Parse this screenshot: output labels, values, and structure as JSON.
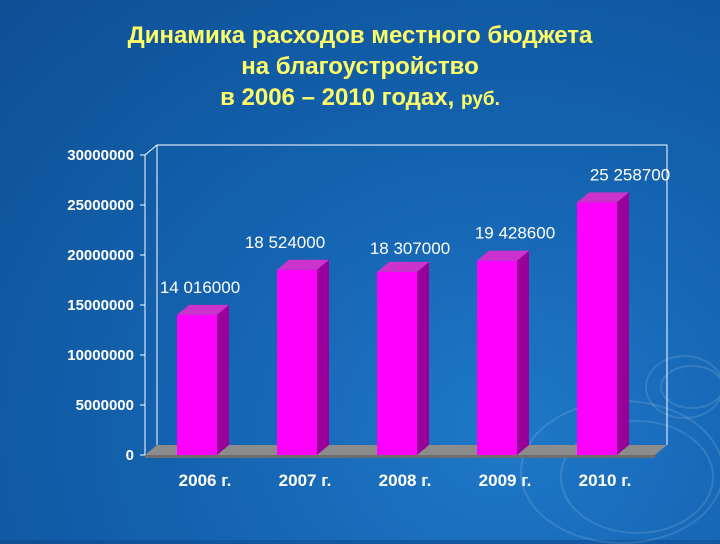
{
  "title": {
    "line1": "Динамика расходов местного бюджета",
    "line2": "на благоустройство",
    "line3": "в 2006 – 2010 годах,",
    "unit": "руб."
  },
  "colors": {
    "background": "#1463b0",
    "bar_front": "#ff00ff",
    "bar_side": "#990099",
    "bar_top": "#cc33cc",
    "title": "#ffff66",
    "floor": "#8c8c8c"
  },
  "chart_data": {
    "type": "bar",
    "categories": [
      "2006 г.",
      "2007 г.",
      "2008 г.",
      "2009 г.",
      "2010 г."
    ],
    "values": [
      14016000,
      18524000,
      18307000,
      19428600,
      25258700
    ],
    "data_labels": [
      "14 016000",
      "18 524000",
      "18 307000",
      "19 428600",
      "25 258700"
    ],
    "y_ticks": [
      0,
      5000000,
      10000000,
      15000000,
      20000000,
      25000000,
      30000000
    ],
    "y_tick_labels": [
      "0",
      "5000000",
      "10000000",
      "15000000",
      "20000000",
      "25000000",
      "30000000"
    ],
    "ylim": [
      0,
      30000000
    ],
    "grid": false,
    "legend": "none",
    "style": "3d-column"
  }
}
